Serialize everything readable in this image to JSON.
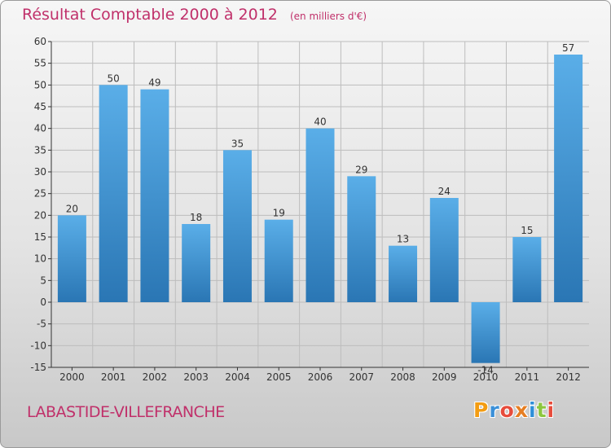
{
  "title": "Résultat Comptable 2000 à 2012",
  "unit_label": "(en milliers d'€)",
  "commune": "LABASTIDE-VILLEFRANCHE",
  "logo": {
    "text": "Proxiti",
    "letters": [
      "P",
      "r",
      "o",
      "x",
      "i",
      "t",
      "i"
    ],
    "letter_colors": [
      "#f39c12",
      "#3a8fd8",
      "#e74c3c",
      "#e67e22",
      "#2f8fd8",
      "#8cc63f",
      "#e74c3c"
    ]
  },
  "colors": {
    "title": "#c0306a",
    "bar_top": "#5aaee8",
    "bar_bottom": "#2a76b4",
    "axis": "#333333",
    "grid": "#bdbdbd"
  },
  "chart_data": {
    "type": "bar",
    "title": "Résultat Comptable 2000 à 2012",
    "subtitle": "(en milliers d'€)",
    "xlabel": "",
    "ylabel": "",
    "categories": [
      "2000",
      "2001",
      "2002",
      "2003",
      "2004",
      "2005",
      "2006",
      "2007",
      "2008",
      "2009",
      "2010",
      "2011",
      "2012"
    ],
    "values": [
      20,
      50,
      49,
      18,
      35,
      19,
      40,
      29,
      13,
      24,
      -14,
      15,
      57
    ],
    "ylim": [
      -15,
      60
    ],
    "yticks": [
      -15,
      -10,
      -5,
      0,
      5,
      10,
      15,
      20,
      25,
      30,
      35,
      40,
      45,
      50,
      55,
      60
    ],
    "grid": true
  }
}
